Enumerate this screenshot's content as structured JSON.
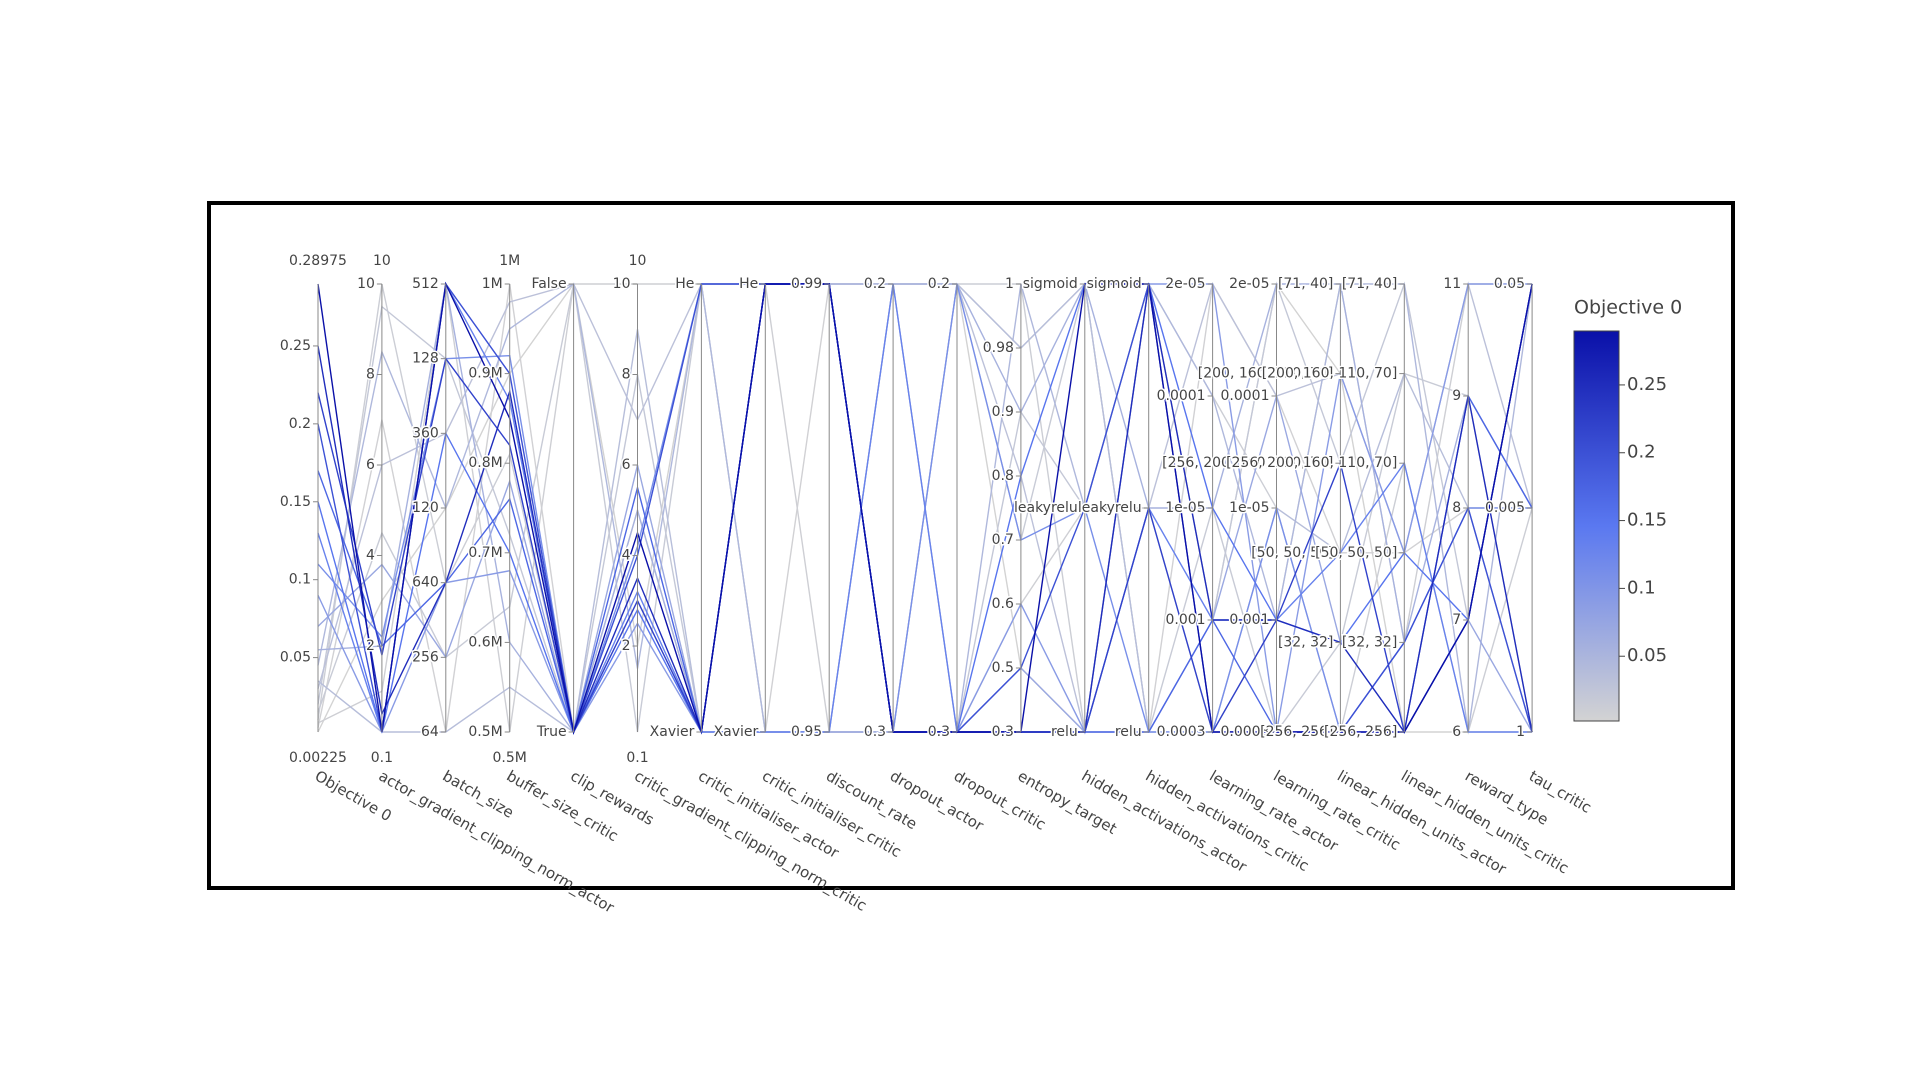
{
  "chart_data": {
    "type": "parcoords",
    "color_title": "Objective 0",
    "colorscale": [
      "#d3d3d3",
      "#5a78f0",
      "#0a10a8"
    ],
    "colorbar_ticks": [
      0.05,
      0.1,
      0.15,
      0.2,
      0.25
    ],
    "dimensions": [
      {
        "label": "Objective 0",
        "range": [
          0.00225,
          0.28975
        ],
        "ticks": [
          0.05,
          0.1,
          0.15,
          0.2,
          0.25
        ],
        "values": [
          0.28975,
          0.25,
          0.22,
          0.2,
          0.17,
          0.15,
          0.13,
          0.11,
          0.09,
          0.07,
          0.055,
          0.045,
          0.035,
          0.03,
          0.02,
          0.015,
          0.01,
          0.008,
          0.005,
          0.00225
        ]
      },
      {
        "label": "actor_gradient_clipping_norm_actor",
        "range": [
          0.1,
          10
        ],
        "ticks": [
          2,
          4,
          6,
          8,
          10
        ],
        "values": [
          0.1,
          0.5,
          1.8,
          0.1,
          2,
          0.1,
          0.1,
          2.2,
          0.1,
          3.8,
          2,
          8.5,
          0.1,
          6,
          9.5,
          4.5,
          10,
          1,
          7,
          3
        ]
      },
      {
        "label": "batch_size",
        "categories": [
          "64",
          "256",
          "640",
          "120",
          "360",
          "128",
          "512"
        ],
        "values": [
          "512",
          "640",
          "128",
          "512",
          "640",
          "360",
          "512",
          "128",
          "640",
          "256",
          "512",
          "120",
          "64",
          "360",
          "128",
          "256",
          "640",
          "512",
          "64",
          "120"
        ]
      },
      {
        "label": "buffer_size_critic",
        "range": [
          {
            "value": 500000,
            "label": "0.5M"
          },
          {
            "value": 1000000,
            "label": "1M"
          }
        ],
        "ticks": [
          {
            "value": 500000,
            "label": "0.5M"
          },
          {
            "value": 600000,
            "label": "0.6M"
          },
          {
            "value": 700000,
            "label": "0.7M"
          },
          {
            "value": 800000,
            "label": "0.8M"
          },
          {
            "value": 900000,
            "label": "0.9M"
          },
          {
            "value": 1000000,
            "label": "1M"
          }
        ],
        "values": [
          850000,
          880000,
          820000,
          900000,
          760000,
          700000,
          870000,
          920000,
          680000,
          780000,
          600000,
          950000,
          550000,
          980000,
          720000,
          640000,
          810000,
          500000,
          1000000,
          900000
        ]
      },
      {
        "label": "clip_rewards",
        "categories": [
          "True",
          "False"
        ],
        "values": [
          "True",
          "True",
          "True",
          "True",
          "True",
          "True",
          "True",
          "True",
          "True",
          "True",
          "True",
          "False",
          "True",
          "False",
          "True",
          "False",
          "True",
          "False",
          "True",
          "False"
        ]
      },
      {
        "label": "critic_gradient_clipping_norm_critic",
        "range": [
          0.1,
          10
        ],
        "ticks": [
          2,
          4,
          6,
          8,
          10
        ],
        "values": [
          4.5,
          3.5,
          3,
          4,
          5.5,
          2.8,
          3.2,
          4.2,
          2.5,
          6,
          5,
          1.5,
          9,
          7,
          8,
          0.1,
          3,
          10,
          5,
          2
        ]
      },
      {
        "label": "critic_initialiser_actor",
        "categories": [
          "Xavier",
          "He"
        ],
        "values": [
          "Xavier",
          "Xavier",
          "Xavier",
          "He",
          "Xavier",
          "Xavier",
          "Xavier",
          "He",
          "Xavier",
          "Xavier",
          "Xavier",
          "He",
          "Xavier",
          "He",
          "Xavier",
          "He",
          "Xavier",
          "He",
          "Xavier",
          "He"
        ]
      },
      {
        "label": "critic_initialiser_critic",
        "categories": [
          "Xavier",
          "He"
        ],
        "values": [
          "He",
          "He",
          "He",
          "He",
          "He",
          "He",
          "Xavier",
          "He",
          "He",
          "Xavier",
          "He",
          "Xavier",
          "Xavier",
          "He",
          "Xavier",
          "Xavier",
          "He",
          "He",
          "Xavier",
          "Xavier"
        ]
      },
      {
        "label": "discount_rate",
        "categories": [
          "0.95",
          "0.99"
        ],
        "values": [
          "0.99",
          "0.99",
          "0.99",
          "0.99",
          "0.99",
          "0.99",
          "0.95",
          "0.99",
          "0.99",
          "0.95",
          "0.99",
          "0.95",
          "0.95",
          "0.99",
          "0.95",
          "0.95",
          "0.99",
          "0.95",
          "0.99",
          "0.95"
        ]
      },
      {
        "label": "dropout_actor",
        "categories": [
          "0.3",
          "0.2"
        ],
        "values": [
          "0.3",
          "0.3",
          "0.3",
          "0.3",
          "0.3",
          "0.3",
          "0.2",
          "0.3",
          "0.3",
          "0.3",
          "0.2",
          "0.2",
          "0.3",
          "0.2",
          "0.3",
          "0.2",
          "0.3",
          "0.2",
          "0.2",
          "0.3"
        ]
      },
      {
        "label": "dropout_critic",
        "categories": [
          "0.3",
          "0.2"
        ],
        "values": [
          "0.3",
          "0.3",
          "0.3",
          "0.3",
          "0.3",
          "0.3",
          "0.3",
          "0.2",
          "0.3",
          "0.3",
          "0.2",
          "0.3",
          "0.2",
          "0.2",
          "0.3",
          "0.2",
          "0.2",
          "0.3",
          "0.2",
          "0.2"
        ]
      },
      {
        "label": "entropy_target",
        "categories": [
          "0.3",
          "0.5",
          "0.6",
          "0.7",
          "0.8",
          "0.9",
          "0.98",
          "1"
        ],
        "values": [
          "0.3",
          "0.3",
          "0.3",
          "0.5",
          "0.3",
          "0.8",
          "0.3",
          "0.7",
          "0.6",
          "0.5",
          "0.9",
          "1",
          "0.98",
          "0.8",
          "0.9",
          "0.7",
          "1",
          "0.6",
          "0.98",
          "0.5"
        ]
      },
      {
        "label": "hidden_activations_actor",
        "categories": [
          "relu",
          "leakyrelu",
          "sigmoid"
        ],
        "values": [
          "sigmoid",
          "relu",
          "relu",
          "leakyrelu",
          "relu",
          "sigmoid",
          "relu",
          "leakyrelu",
          "relu",
          "relu",
          "sigmoid",
          "leakyrelu",
          "sigmoid",
          "relu",
          "leakyrelu",
          "sigmoid",
          "relu",
          "leakyrelu",
          "sigmoid",
          "relu"
        ]
      },
      {
        "label": "hidden_activations_critic",
        "categories": [
          "relu",
          "leakyrelu",
          "sigmoid"
        ],
        "values": [
          "sigmoid",
          "sigmoid",
          "leakyrelu",
          "sigmoid",
          "relu",
          "sigmoid",
          "leakyrelu",
          "relu",
          "sigmoid",
          "relu",
          "leakyrelu",
          "sigmoid",
          "relu",
          "leakyrelu",
          "sigmoid",
          "relu",
          "sigmoid",
          "leakyrelu",
          "relu",
          "sigmoid"
        ]
      },
      {
        "label": "learning_rate_actor",
        "categories": [
          "0.0003",
          "0.001",
          "1e-05",
          "0.0001",
          "2e-05"
        ],
        "values": [
          "0.0003",
          "0.001",
          "0.0003",
          "0.0003",
          "0.001",
          "1e-05",
          "0.001",
          "0.0003",
          "2e-05",
          "0.001",
          "1e-05",
          "0.0001",
          "0.0003",
          "2e-05",
          "0.001",
          "1e-05",
          "0.0001",
          "0.0003",
          "2e-05",
          "0.001"
        ]
      },
      {
        "label": "learning_rate_critic",
        "categories": [
          "0.0003",
          "0.001",
          "1e-05",
          "0.0001",
          "2e-05"
        ],
        "values": [
          "0.0003",
          "0.001",
          "0.001",
          "0.0003",
          "0.0003",
          "0.001",
          "0.001",
          "1e-05",
          "0.0003",
          "0.0001",
          "2e-05",
          "0.001",
          "1e-05",
          "0.0001",
          "2e-05",
          "0.0003",
          "1e-05",
          "0.001",
          "0.0001",
          "2e-05"
        ]
      },
      {
        "label": "linear_hidden_units_actor",
        "categories": [
          "[256, 256]",
          "[32, 32]",
          "[50, 50, 50]",
          "[256, 200, 160, 110, 70]",
          "[200, 160, 110, 70]",
          "[71, 40]"
        ],
        "values": [
          "[256, 256]",
          "[32, 32]",
          "[256, 200, 160, 110, 70]",
          "[256, 256]",
          "[256, 256]",
          "[32, 32]",
          "[50, 50, 50]",
          "[256, 256]",
          "[200, 160, 110, 70]",
          "[32, 32]",
          "[71, 40]",
          "[71, 40]",
          "[50, 50, 50]",
          "[200, 160, 110, 70]",
          "[256, 200, 160, 110, 70]",
          "[32, 32]",
          "[256, 256]",
          "[71, 40]",
          "[50, 50, 50]",
          "[200, 160, 110, 70]"
        ]
      },
      {
        "label": "linear_hidden_units_critic",
        "categories": [
          "[256, 256]",
          "[32, 32]",
          "[50, 50, 50]",
          "[256, 200, 160, 110, 70]",
          "[200, 160, 110, 70]",
          "[71, 40]"
        ],
        "values": [
          "[256, 256]",
          "[256, 256]",
          "[256, 256]",
          "[32, 32]",
          "[256, 256]",
          "[50, 50, 50]",
          "[256, 200, 160, 110, 70]",
          "[32, 32]",
          "[50, 50, 50]",
          "[256, 256]",
          "[32, 32]",
          "[71, 40]",
          "[200, 160, 110, 70]",
          "[50, 50, 50]",
          "[71, 40]",
          "[200, 160, 110, 70]",
          "[256, 200, 160, 110, 70]",
          "[32, 32]",
          "[50, 50, 50]",
          "[256, 256]"
        ]
      },
      {
        "label": "reward_type",
        "categories": [
          "6",
          "7",
          "8",
          "9",
          "11"
        ],
        "values": [
          "7",
          "9",
          "7",
          "8",
          "9",
          "7",
          "6",
          "8",
          "11",
          "7",
          "9",
          "6",
          "8",
          "11",
          "7",
          "9",
          "6",
          "11",
          "8",
          "6"
        ]
      },
      {
        "label": "tau_critic",
        "categories": [
          "1",
          "0.005",
          "0.05"
        ],
        "values": [
          "0.05",
          "1",
          "0.05",
          "1",
          "0.005",
          "0.05",
          "1",
          "0.005",
          "0.05",
          "1",
          "0.005",
          "0.05",
          "1",
          "0.005",
          "0.05",
          "1",
          "0.005",
          "0.05",
          "0.005",
          "1"
        ]
      }
    ]
  }
}
